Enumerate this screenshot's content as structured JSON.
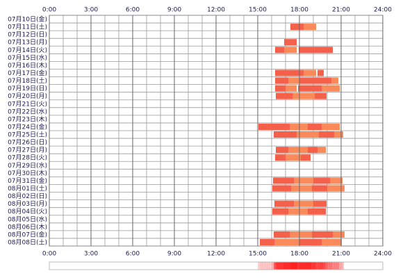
{
  "chart_data": {
    "type": "timeline",
    "xlim": [
      0,
      24
    ],
    "xticks": [
      {
        "value": 0,
        "label": "0:00"
      },
      {
        "value": 3,
        "label": "3:00"
      },
      {
        "value": 6,
        "label": "6:00"
      },
      {
        "value": 9,
        "label": "9:00"
      },
      {
        "value": 12,
        "label": "12:00"
      },
      {
        "value": 15,
        "label": "15:00"
      },
      {
        "value": 18,
        "label": "18:00"
      },
      {
        "value": 21,
        "label": "21:00"
      },
      {
        "value": 24,
        "label": "24:00"
      }
    ],
    "grid_step": 1,
    "colors": [
      "#f4604a",
      "#fa8a5a"
    ],
    "heat_color": "#ff2020",
    "rows": [
      {
        "label": "07月10日(金)",
        "segments": []
      },
      {
        "label": "07月11日(土)",
        "segments": [
          [
            17.35,
            18.3
          ],
          [
            18.3,
            19.2
          ]
        ]
      },
      {
        "label": "07月12日(日)",
        "segments": []
      },
      {
        "label": "07月13日(月)",
        "segments": [
          [
            16.9,
            17.8
          ]
        ]
      },
      {
        "label": "07月14日(火)",
        "segments": [
          [
            16.25,
            16.9
          ],
          [
            16.9,
            17.8
          ],
          [
            17.95,
            20.4
          ]
        ]
      },
      {
        "label": "07月15日(水)",
        "segments": []
      },
      {
        "label": "07月16日(木)",
        "segments": []
      },
      {
        "label": "07月17日(金)",
        "segments": [
          [
            16.25,
            18.3
          ],
          [
            18.3,
            19.2
          ],
          [
            19.3,
            19.75
          ]
        ]
      },
      {
        "label": "07月18日(土)",
        "segments": [
          [
            16.25,
            17.2
          ],
          [
            17.2,
            18.0
          ],
          [
            18.0,
            20.3
          ],
          [
            20.3,
            20.8
          ]
        ]
      },
      {
        "label": "07月19日(日)",
        "segments": [
          [
            16.25,
            17.0
          ],
          [
            17.0,
            17.8
          ],
          [
            17.9,
            19.6
          ],
          [
            19.6,
            20.9
          ]
        ]
      },
      {
        "label": "07月20日(月)",
        "segments": [
          [
            16.3,
            17.5
          ],
          [
            17.5,
            19.1
          ],
          [
            19.1,
            19.95
          ]
        ]
      },
      {
        "label": "07月21日(火)",
        "segments": []
      },
      {
        "label": "07月22日(水)",
        "segments": []
      },
      {
        "label": "07月23日(木)",
        "segments": []
      },
      {
        "label": "07月24日(金)",
        "segments": [
          [
            15.05,
            17.3
          ],
          [
            17.3,
            18.6
          ],
          [
            18.6,
            19.6
          ],
          [
            19.6,
            20.9
          ]
        ]
      },
      {
        "label": "07月25日(土)",
        "segments": [
          [
            16.15,
            17.8
          ],
          [
            17.8,
            19.4
          ],
          [
            19.4,
            20.5
          ],
          [
            20.5,
            21.15
          ]
        ]
      },
      {
        "label": "07月26日(日)",
        "segments": []
      },
      {
        "label": "07月27日(月)",
        "segments": [
          [
            16.3,
            17.2
          ],
          [
            17.2,
            18.6
          ],
          [
            18.6,
            19.3
          ],
          [
            19.3,
            19.9
          ]
        ]
      },
      {
        "label": "07月28日(火)",
        "segments": [
          [
            16.25,
            17.0
          ],
          [
            17.0,
            18.1
          ],
          [
            18.1,
            18.8
          ]
        ]
      },
      {
        "label": "07月29日(水)",
        "segments": []
      },
      {
        "label": "07月30日(木)",
        "segments": []
      },
      {
        "label": "07月31日(金)",
        "segments": [
          [
            16.1,
            17.6
          ],
          [
            17.6,
            19.0
          ],
          [
            19.0,
            20.2
          ],
          [
            20.2,
            21.1
          ]
        ]
      },
      {
        "label": "08月01日(土)",
        "segments": [
          [
            16.05,
            17.4
          ],
          [
            17.4,
            18.9
          ],
          [
            18.9,
            20.0
          ],
          [
            20.0,
            21.25
          ]
        ]
      },
      {
        "label": "08月02日(日)",
        "segments": []
      },
      {
        "label": "08月03日(月)",
        "segments": [
          [
            16.2,
            17.6
          ],
          [
            17.6,
            19.0
          ],
          [
            19.0,
            19.95
          ]
        ]
      },
      {
        "label": "08月04日(火)",
        "segments": [
          [
            16.05,
            17.2
          ],
          [
            17.2,
            18.6
          ],
          [
            18.6,
            19.9
          ]
        ]
      },
      {
        "label": "08月05日(水)",
        "segments": []
      },
      {
        "label": "08月06日(木)",
        "segments": []
      },
      {
        "label": "08月07日(金)",
        "segments": [
          [
            16.15,
            17.3
          ],
          [
            17.3,
            18.9
          ],
          [
            18.9,
            20.4
          ],
          [
            20.4,
            21.25
          ]
        ]
      },
      {
        "label": "08月08日(土)",
        "segments": [
          [
            15.15,
            16.2
          ],
          [
            16.2,
            18.0
          ],
          [
            18.0,
            19.6
          ],
          [
            19.6,
            21.05
          ]
        ]
      }
    ]
  }
}
